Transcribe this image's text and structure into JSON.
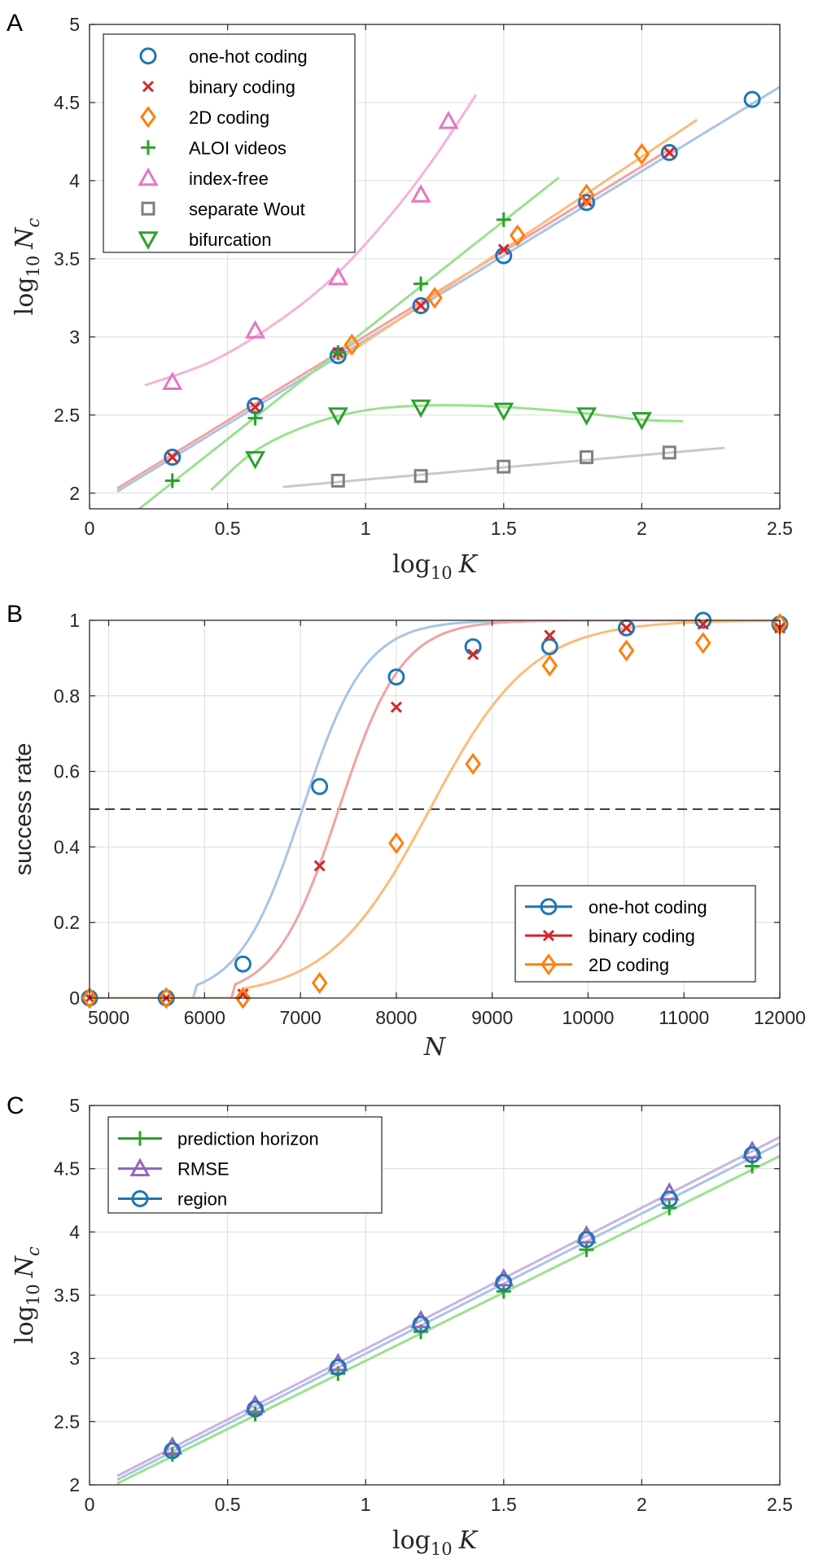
{
  "figure": {
    "panel_labels": [
      "A",
      "B",
      "C"
    ]
  },
  "chart_data": [
    {
      "panel": "A",
      "type": "line",
      "xlabel_base": "log",
      "xlabel_sub": "10",
      "xlabel_var": "K",
      "ylabel_base": "log",
      "ylabel_sub": "10",
      "ylabel_var": "N",
      "ylabel_var_sub": "c",
      "xlim": [
        0,
        2.5
      ],
      "ylim": [
        1.9,
        5
      ],
      "xticks": [
        0,
        0.5,
        1,
        1.5,
        2,
        2.5
      ],
      "xticklabels": [
        "0",
        "0.5",
        "1",
        "1.5",
        "2",
        "2.5"
      ],
      "yticks": [
        2,
        2.5,
        3,
        3.5,
        4,
        4.5,
        5
      ],
      "yticklabels": [
        "2",
        "2.5",
        "3",
        "3.5",
        "4",
        "4.5",
        "5"
      ],
      "grid": true,
      "legend_position": "top-left",
      "series": [
        {
          "name": "one-hot coding",
          "marker": "circle",
          "color": "#1f77b4",
          "fit_color": "#a9c4e6",
          "x": [
            0.3,
            0.6,
            0.9,
            1.2,
            1.5,
            1.8,
            2.1,
            2.4
          ],
          "y": [
            2.23,
            2.56,
            2.88,
            3.2,
            3.52,
            3.86,
            4.18,
            4.52
          ],
          "fit": {
            "x": [
              0.1,
              2.5
            ],
            "y": [
              2.01,
              4.6
            ]
          }
        },
        {
          "name": "binary coding",
          "marker": "x",
          "color": "#d62728",
          "fit_color": "#f4a1a1",
          "x": [
            0.3,
            0.6,
            0.9,
            1.2,
            1.5,
            1.8,
            2.1
          ],
          "y": [
            2.23,
            2.55,
            2.9,
            3.2,
            3.56,
            3.87,
            4.18
          ],
          "fit": {
            "x": [
              0.1,
              2.1
            ],
            "y": [
              2.03,
              4.2
            ]
          }
        },
        {
          "name": "2D coding",
          "marker": "diamond",
          "color": "#ff7f0e",
          "fit_color": "#fdbb7a",
          "x": [
            0.95,
            1.25,
            1.55,
            1.8,
            2.0
          ],
          "y": [
            2.95,
            3.25,
            3.65,
            3.91,
            4.17
          ],
          "fit": {
            "x": [
              0.9,
              2.2
            ],
            "y": [
              2.85,
              4.39
            ]
          }
        },
        {
          "name": "ALOI videos",
          "marker": "plus",
          "color": "#2ca02c",
          "fit_color": "#9be08f",
          "x": [
            0.3,
            0.6,
            0.9,
            1.2,
            1.5
          ],
          "y": [
            2.08,
            2.48,
            2.9,
            3.34,
            3.75
          ],
          "fit": {
            "x": [
              0.18,
              1.7
            ],
            "y": [
              1.9,
              4.02
            ]
          }
        },
        {
          "name": "index-free",
          "marker": "triangle-up",
          "color": "#e377c2",
          "fit_color": "#f5b3d8",
          "x": [
            0.3,
            0.6,
            0.9,
            1.2,
            1.3
          ],
          "y": [
            2.71,
            3.04,
            3.38,
            3.91,
            4.38
          ],
          "fit": {
            "x": [
              0.2,
              0.45,
              0.7,
              0.9,
              1.1,
              1.25,
              1.4
            ],
            "y": [
              2.69,
              2.85,
              3.12,
              3.41,
              3.8,
              4.15,
              4.55
            ]
          }
        },
        {
          "name": "separate Wout",
          "marker": "square",
          "color": "#7f7f7f",
          "fit_color": "#c9c9c9",
          "x": [
            0.9,
            1.2,
            1.5,
            1.8,
            2.1
          ],
          "y": [
            2.08,
            2.11,
            2.17,
            2.23,
            2.26
          ],
          "fit": {
            "x": [
              0.7,
              2.3
            ],
            "y": [
              2.04,
              2.29
            ]
          }
        },
        {
          "name": "bifurcation",
          "marker": "triangle-down",
          "color": "#2ca02c",
          "fit_color": "#9be08f",
          "x": [
            0.6,
            0.9,
            1.2,
            1.5,
            1.8,
            2.0
          ],
          "y": [
            2.22,
            2.5,
            2.55,
            2.53,
            2.5,
            2.47
          ],
          "fit": {
            "x": [
              0.44,
              0.6,
              0.8,
              1.0,
              1.2,
              1.4,
              1.6,
              1.8,
              2.0,
              2.15
            ],
            "y": [
              2.02,
              2.27,
              2.44,
              2.53,
              2.56,
              2.56,
              2.54,
              2.51,
              2.47,
              2.46
            ]
          }
        }
      ]
    },
    {
      "panel": "B",
      "type": "line",
      "xlabel": "N",
      "ylabel": "success rate",
      "xlim": [
        4800,
        12000
      ],
      "ylim": [
        0,
        1
      ],
      "xticks": [
        5000,
        6000,
        7000,
        8000,
        9000,
        10000,
        11000,
        12000
      ],
      "xticklabels": [
        "5000",
        "6000",
        "7000",
        "8000",
        "9000",
        "10000",
        "11000",
        "12000"
      ],
      "yticks": [
        0,
        0.2,
        0.4,
        0.6,
        0.8,
        1
      ],
      "yticklabels": [
        "0",
        "0.2",
        "0.4",
        "0.6",
        "0.8",
        "1"
      ],
      "grid": true,
      "threshold_line": 0.5,
      "legend_position": "bottom-right",
      "series": [
        {
          "name": "one-hot coding",
          "marker": "circle",
          "color": "#1f77b4",
          "fit_color": "#a9c4e6",
          "x": [
            4800,
            5600,
            6400,
            7200,
            8000,
            8800,
            9600,
            10400,
            11200,
            12000
          ],
          "y": [
            0,
            0,
            0.09,
            0.56,
            0.85,
            0.93,
            0.93,
            0.98,
            1.0,
            0.99
          ],
          "fit_mid": 7020,
          "fit_scale": 330,
          "fit_start": 5900
        },
        {
          "name": "binary coding",
          "marker": "x",
          "color": "#d62728",
          "fit_color": "#f4a1a1",
          "x": [
            4800,
            5600,
            6400,
            7200,
            8000,
            8800,
            9600,
            10400,
            11200,
            12000
          ],
          "y": [
            0,
            0,
            0.01,
            0.35,
            0.77,
            0.91,
            0.96,
            0.98,
            0.99,
            0.98
          ],
          "fit_mid": 7400,
          "fit_scale": 330,
          "fit_start": 6300
        },
        {
          "name": "2D coding",
          "marker": "diamond",
          "color": "#ff7f0e",
          "fit_color": "#fdbb7a",
          "x": [
            4800,
            5600,
            6400,
            7200,
            8000,
            8800,
            9600,
            10400,
            11200,
            12000
          ],
          "y": [
            0,
            0,
            0,
            0.04,
            0.41,
            0.62,
            0.88,
            0.92,
            0.94,
            0.99
          ],
          "fit_mid": 8350,
          "fit_scale": 530,
          "fit_start": 6400
        }
      ]
    },
    {
      "panel": "C",
      "type": "line",
      "xlabel_base": "log",
      "xlabel_sub": "10",
      "xlabel_var": "K",
      "ylabel_base": "log",
      "ylabel_sub": "10",
      "ylabel_var": "N",
      "ylabel_var_sub": "c",
      "xlim": [
        0,
        2.5
      ],
      "ylim": [
        2,
        5
      ],
      "xticks": [
        0,
        0.5,
        1,
        1.5,
        2,
        2.5
      ],
      "xticklabels": [
        "0",
        "0.5",
        "1",
        "1.5",
        "2",
        "2.5"
      ],
      "yticks": [
        2,
        2.5,
        3,
        3.5,
        4,
        4.5,
        5
      ],
      "yticklabels": [
        "2",
        "2.5",
        "3",
        "3.5",
        "4",
        "4.5",
        "5"
      ],
      "grid": true,
      "legend_position": "top-left",
      "series": [
        {
          "name": "prediction horizon",
          "marker": "plus",
          "color": "#2ca02c",
          "fit_color": "#9be08f",
          "x": [
            0.3,
            0.6,
            0.9,
            1.2,
            1.5,
            1.8,
            2.1,
            2.4
          ],
          "y": [
            2.24,
            2.56,
            2.88,
            3.21,
            3.53,
            3.86,
            4.19,
            4.52
          ],
          "fit": {
            "x": [
              0.1,
              2.5
            ],
            "y": [
              2.01,
              4.6
            ]
          }
        },
        {
          "name": "RMSE",
          "marker": "triangle-up",
          "color": "#9467bd",
          "fit_color": "#c9b3e3",
          "x": [
            0.3,
            0.6,
            0.9,
            1.2,
            1.5,
            1.8,
            2.1,
            2.4
          ],
          "y": [
            2.3,
            2.63,
            2.96,
            3.3,
            3.63,
            3.97,
            4.31,
            4.64
          ],
          "fit": {
            "x": [
              0.1,
              2.5
            ],
            "y": [
              2.07,
              4.75
            ]
          }
        },
        {
          "name": "region",
          "marker": "circle",
          "color": "#1f77b4",
          "fit_color": "#a9c4e6",
          "x": [
            0.3,
            0.6,
            0.9,
            1.2,
            1.5,
            1.8,
            2.1,
            2.4
          ],
          "y": [
            2.27,
            2.6,
            2.93,
            3.27,
            3.6,
            3.94,
            4.26,
            4.61
          ],
          "fit": {
            "x": [
              0.1,
              2.5
            ],
            "y": [
              2.04,
              4.7
            ]
          }
        }
      ]
    }
  ]
}
